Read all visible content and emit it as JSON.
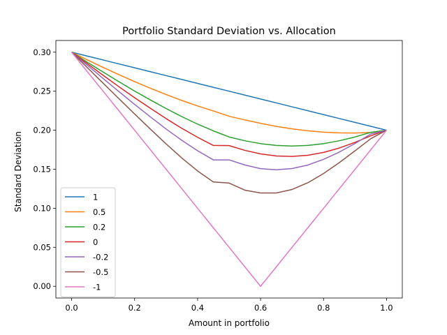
{
  "chart_data": {
    "type": "line",
    "title": "Portfolio Standard Deviation vs. Allocation",
    "xlabel": "Amount in portfolio",
    "ylabel": "Standard Deviation",
    "xlim": [
      -0.05,
      1.05
    ],
    "ylim": [
      -0.015,
      0.315
    ],
    "xticks": [
      0.0,
      0.2,
      0.4,
      0.6,
      0.8,
      1.0
    ],
    "xtick_labels": [
      "0.0",
      "0.2",
      "0.4",
      "0.6",
      "0.8",
      "1.0"
    ],
    "yticks": [
      0.0,
      0.05,
      0.1,
      0.15,
      0.2,
      0.25,
      0.3
    ],
    "ytick_labels": [
      "0.00",
      "0.05",
      "0.10",
      "0.15",
      "0.20",
      "0.25",
      "0.30"
    ],
    "grid": false,
    "legend_position": "lower-left",
    "x": [
      0.0,
      0.05,
      0.1,
      0.15,
      0.2,
      0.25,
      0.3,
      0.35,
      0.4,
      0.45,
      0.5,
      0.55,
      0.6,
      0.65,
      0.7,
      0.75,
      0.8,
      0.85,
      0.9,
      0.95,
      1.0
    ],
    "series": [
      {
        "name": "1",
        "color": "#1f77b4",
        "values": [
          0.3,
          0.295,
          0.29,
          0.285,
          0.28,
          0.275,
          0.27,
          0.265,
          0.26,
          0.255,
          0.25,
          0.245,
          0.24,
          0.235,
          0.23,
          0.225,
          0.22,
          0.215,
          0.21,
          0.205,
          0.2
        ]
      },
      {
        "name": "0.5",
        "color": "#ff7f0e",
        "values": [
          0.3,
          0.2901,
          0.2805,
          0.2712,
          0.2623,
          0.2538,
          0.2457,
          0.2381,
          0.2311,
          0.2247,
          0.2179,
          0.2132,
          0.2088,
          0.2049,
          0.2018,
          0.1993,
          0.1975,
          0.1966,
          0.1964,
          0.1972,
          0.2
        ]
      },
      {
        "name": "0.2",
        "color": "#2ca02c",
        "values": [
          0.3,
          0.2871,
          0.2745,
          0.2622,
          0.2502,
          0.2388,
          0.2278,
          0.2174,
          0.2078,
          0.1992,
          0.1914,
          0.1865,
          0.1828,
          0.1805,
          0.1797,
          0.1805,
          0.1828,
          0.1865,
          0.1914,
          0.1973,
          0.2
        ]
      },
      {
        "name": "0",
        "color": "#d62728",
        "values": [
          0.3,
          0.2852,
          0.2704,
          0.2558,
          0.2417,
          0.2281,
          0.2149,
          0.2024,
          0.1909,
          0.1805,
          0.1803,
          0.1742,
          0.1697,
          0.167,
          0.1664,
          0.1679,
          0.1716,
          0.1772,
          0.1845,
          0.1929,
          0.2
        ]
      },
      {
        "name": "-0.2",
        "color": "#9467bd",
        "values": [
          0.3,
          0.2832,
          0.2663,
          0.2496,
          0.2331,
          0.2171,
          0.2016,
          0.187,
          0.1737,
          0.162,
          0.162,
          0.1555,
          0.1508,
          0.1493,
          0.1509,
          0.1554,
          0.1627,
          0.172,
          0.183,
          0.1952,
          0.2
        ]
      },
      {
        "name": "-0.5",
        "color": "#8c564b",
        "values": [
          0.3,
          0.2802,
          0.2603,
          0.2405,
          0.2208,
          0.2015,
          0.1825,
          0.1644,
          0.1478,
          0.1337,
          0.1323,
          0.1232,
          0.1196,
          0.1196,
          0.1241,
          0.1327,
          0.1445,
          0.1585,
          0.1737,
          0.1892,
          0.2
        ]
      },
      {
        "name": "-1",
        "color": "#e377c2",
        "values": [
          0.3,
          0.275,
          0.25,
          0.225,
          0.2,
          0.175,
          0.15,
          0.125,
          0.1,
          0.075,
          0.05,
          0.025,
          0.0,
          0.025,
          0.05,
          0.075,
          0.1,
          0.125,
          0.15,
          0.175,
          0.2
        ]
      }
    ]
  }
}
